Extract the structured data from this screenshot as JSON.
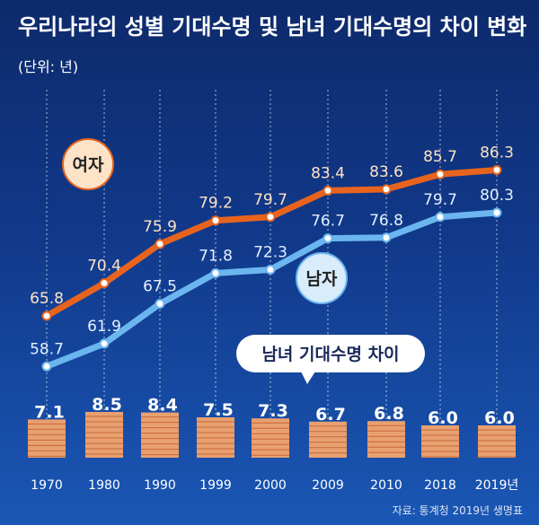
{
  "chart_data": {
    "type": "line",
    "title": "우리나라의 성별 기대수명 및 남녀 기대수명의 차이 변화",
    "unit_label": "(단위: 년)",
    "categories": [
      "1970",
      "1980",
      "1990",
      "1999",
      "2000",
      "2009",
      "2010",
      "2018",
      "2019년"
    ],
    "series": [
      {
        "name": "여자",
        "color": "#e8641e",
        "values": [
          65.8,
          70.4,
          75.9,
          79.2,
          79.7,
          83.4,
          83.6,
          85.7,
          86.3
        ]
      },
      {
        "name": "남자",
        "color": "#6cb6f0",
        "values": [
          58.7,
          61.9,
          67.5,
          71.8,
          72.3,
          76.7,
          76.8,
          79.7,
          80.3
        ]
      }
    ],
    "gap": {
      "title": "남녀 기대수명 차이",
      "values": [
        7.1,
        8.5,
        8.4,
        7.5,
        7.3,
        6.7,
        6.8,
        6.0,
        6.0
      ]
    },
    "source": "자료: 통계청 2019년 생명표",
    "ylim": [
      55,
      90
    ]
  },
  "colors": {
    "female_line": "#e8641e",
    "male_line": "#6cb6f0",
    "gap_bar": "#e8a070",
    "gap_bar_stripe": "#c8683a",
    "gridline": "#ffffff"
  }
}
